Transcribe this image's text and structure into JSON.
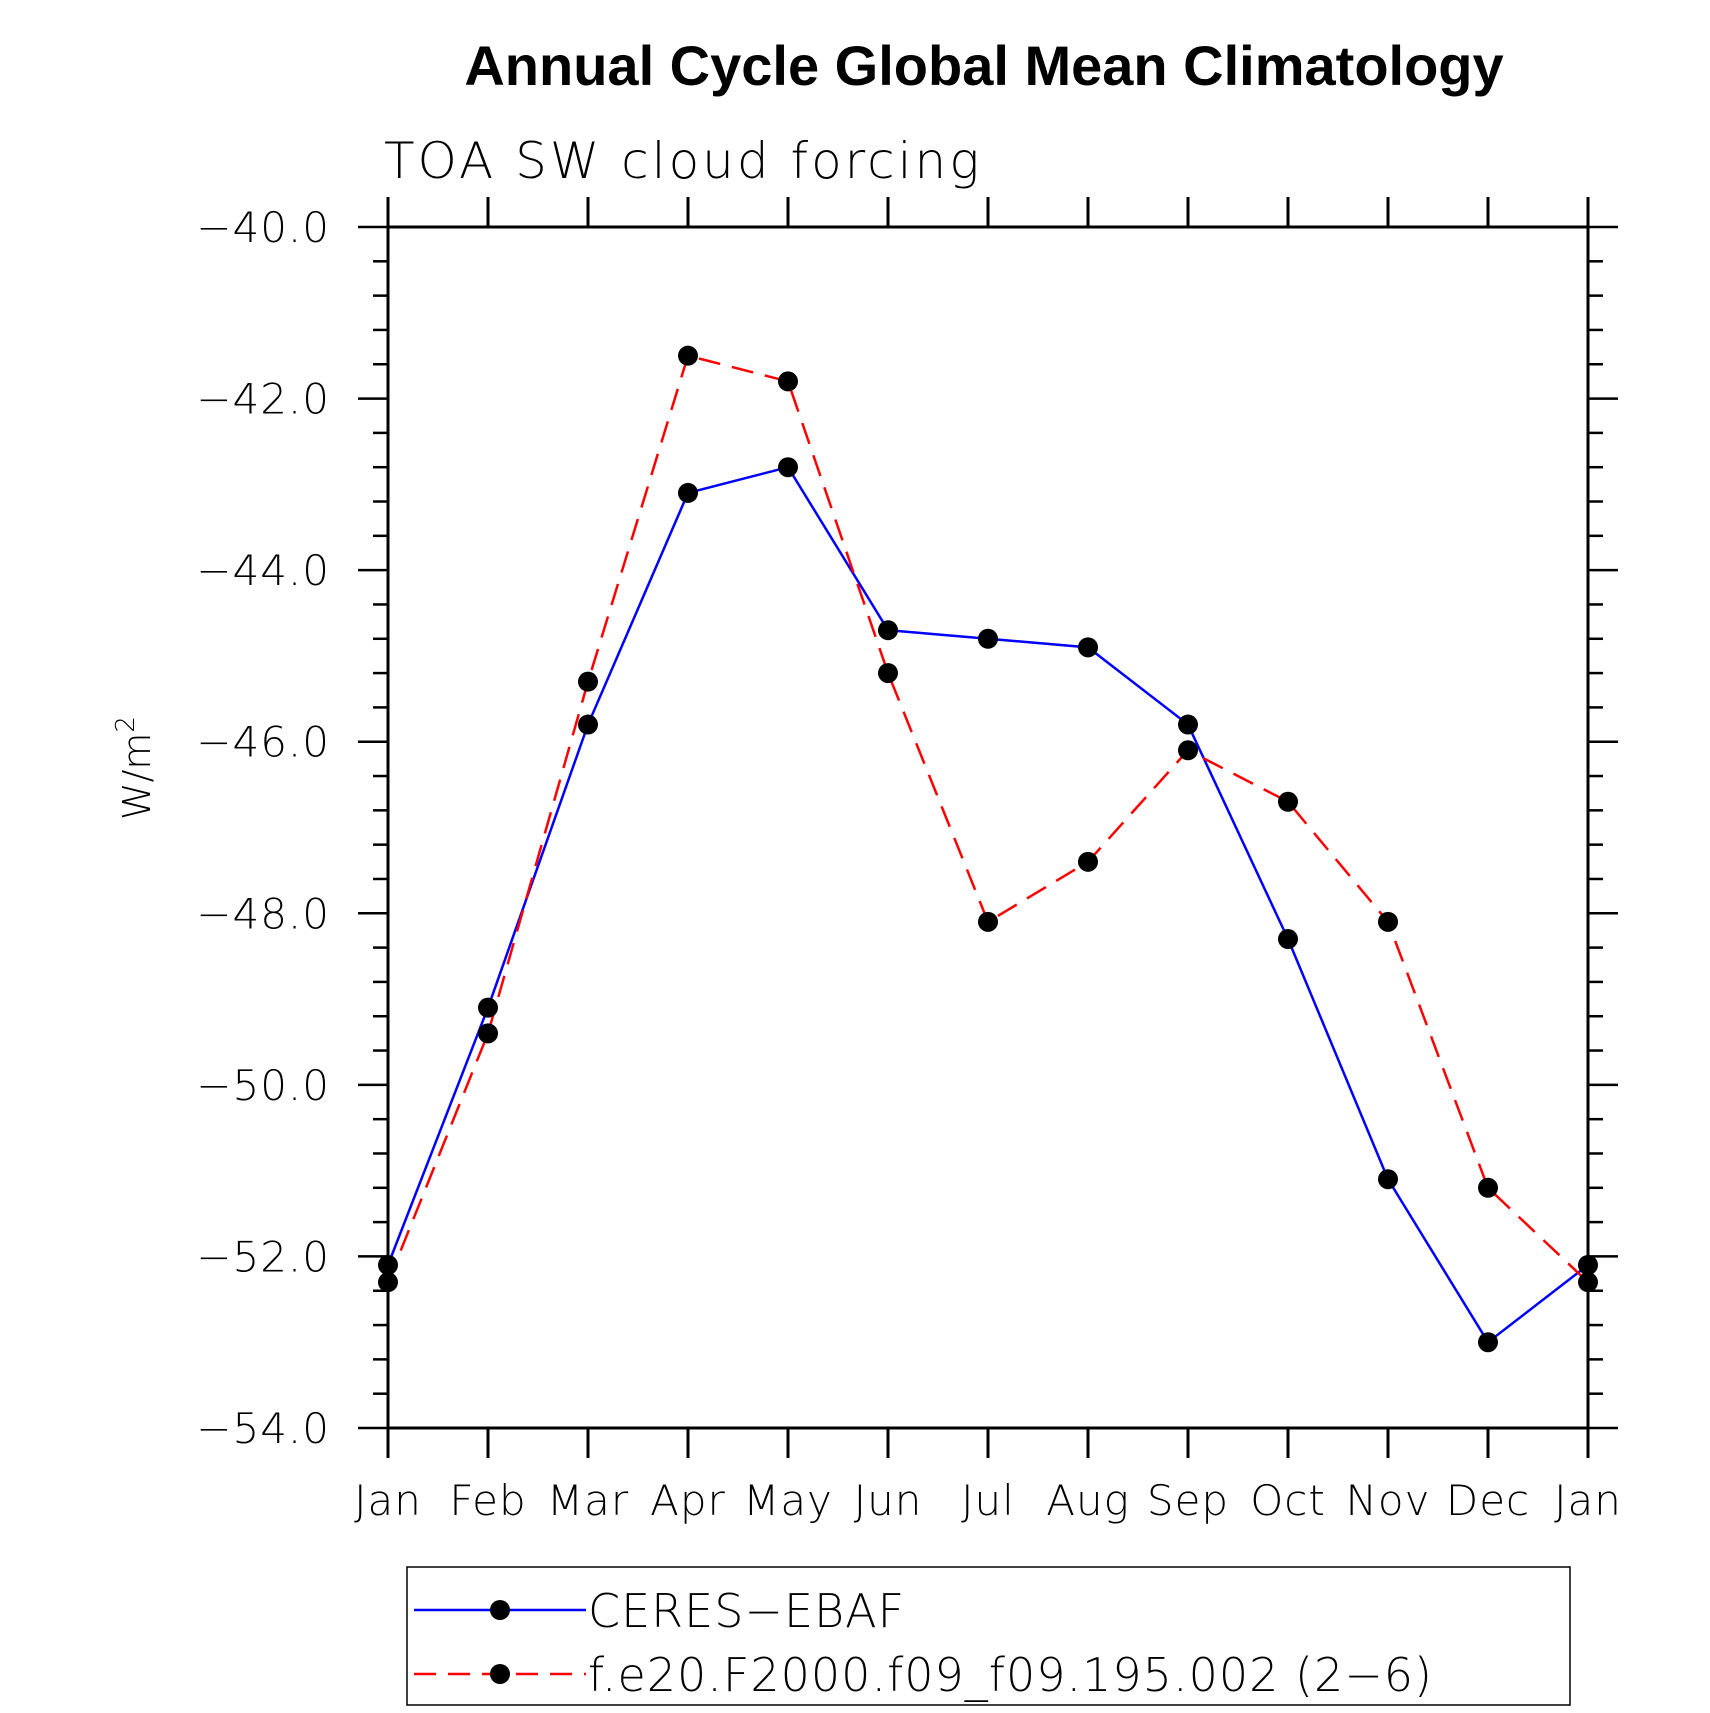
{
  "chart_data": {
    "type": "line",
    "title": "Annual Cycle Global Mean Climatology",
    "subtitle": "TOA SW cloud forcing",
    "ylabel_base": "W/m",
    "ylabel_sup": "2",
    "categories": [
      "Jan",
      "Feb",
      "Mar",
      "Apr",
      "May",
      "Jun",
      "Jul",
      "Aug",
      "Sep",
      "Oct",
      "Nov",
      "Dec",
      "Jan"
    ],
    "ylim": [
      -54.0,
      -40.0
    ],
    "yticks": [
      "-40.0",
      "-42.0",
      "-44.0",
      "-46.0",
      "-48.0",
      "-50.0",
      "-52.0",
      "-54.0"
    ],
    "yticks_display": [
      "−40.0",
      "−42.0",
      "−44.0",
      "−46.0",
      "−48.0",
      "−50.0",
      "−52.0",
      "−54.0"
    ],
    "grid": false,
    "legend_position": "bottom",
    "series": [
      {
        "name": "CERES−EBAF",
        "color": "#0000ff",
        "dash": "solid",
        "marker": "circle",
        "values": [
          -52.1,
          -49.1,
          -45.8,
          -43.1,
          -42.8,
          -44.7,
          -44.8,
          -44.9,
          -45.8,
          -48.3,
          -51.1,
          -53.0,
          -52.1
        ]
      },
      {
        "name": "f.e20.F2000.f09_f09.195.002 (2−6)",
        "color": "#ff0000",
        "dash": "dashed",
        "marker": "circle",
        "values": [
          -52.3,
          -49.4,
          -45.3,
          -41.5,
          -41.8,
          -45.2,
          -48.1,
          -47.4,
          -46.1,
          -46.7,
          -48.1,
          -51.2,
          -52.3
        ]
      }
    ]
  }
}
